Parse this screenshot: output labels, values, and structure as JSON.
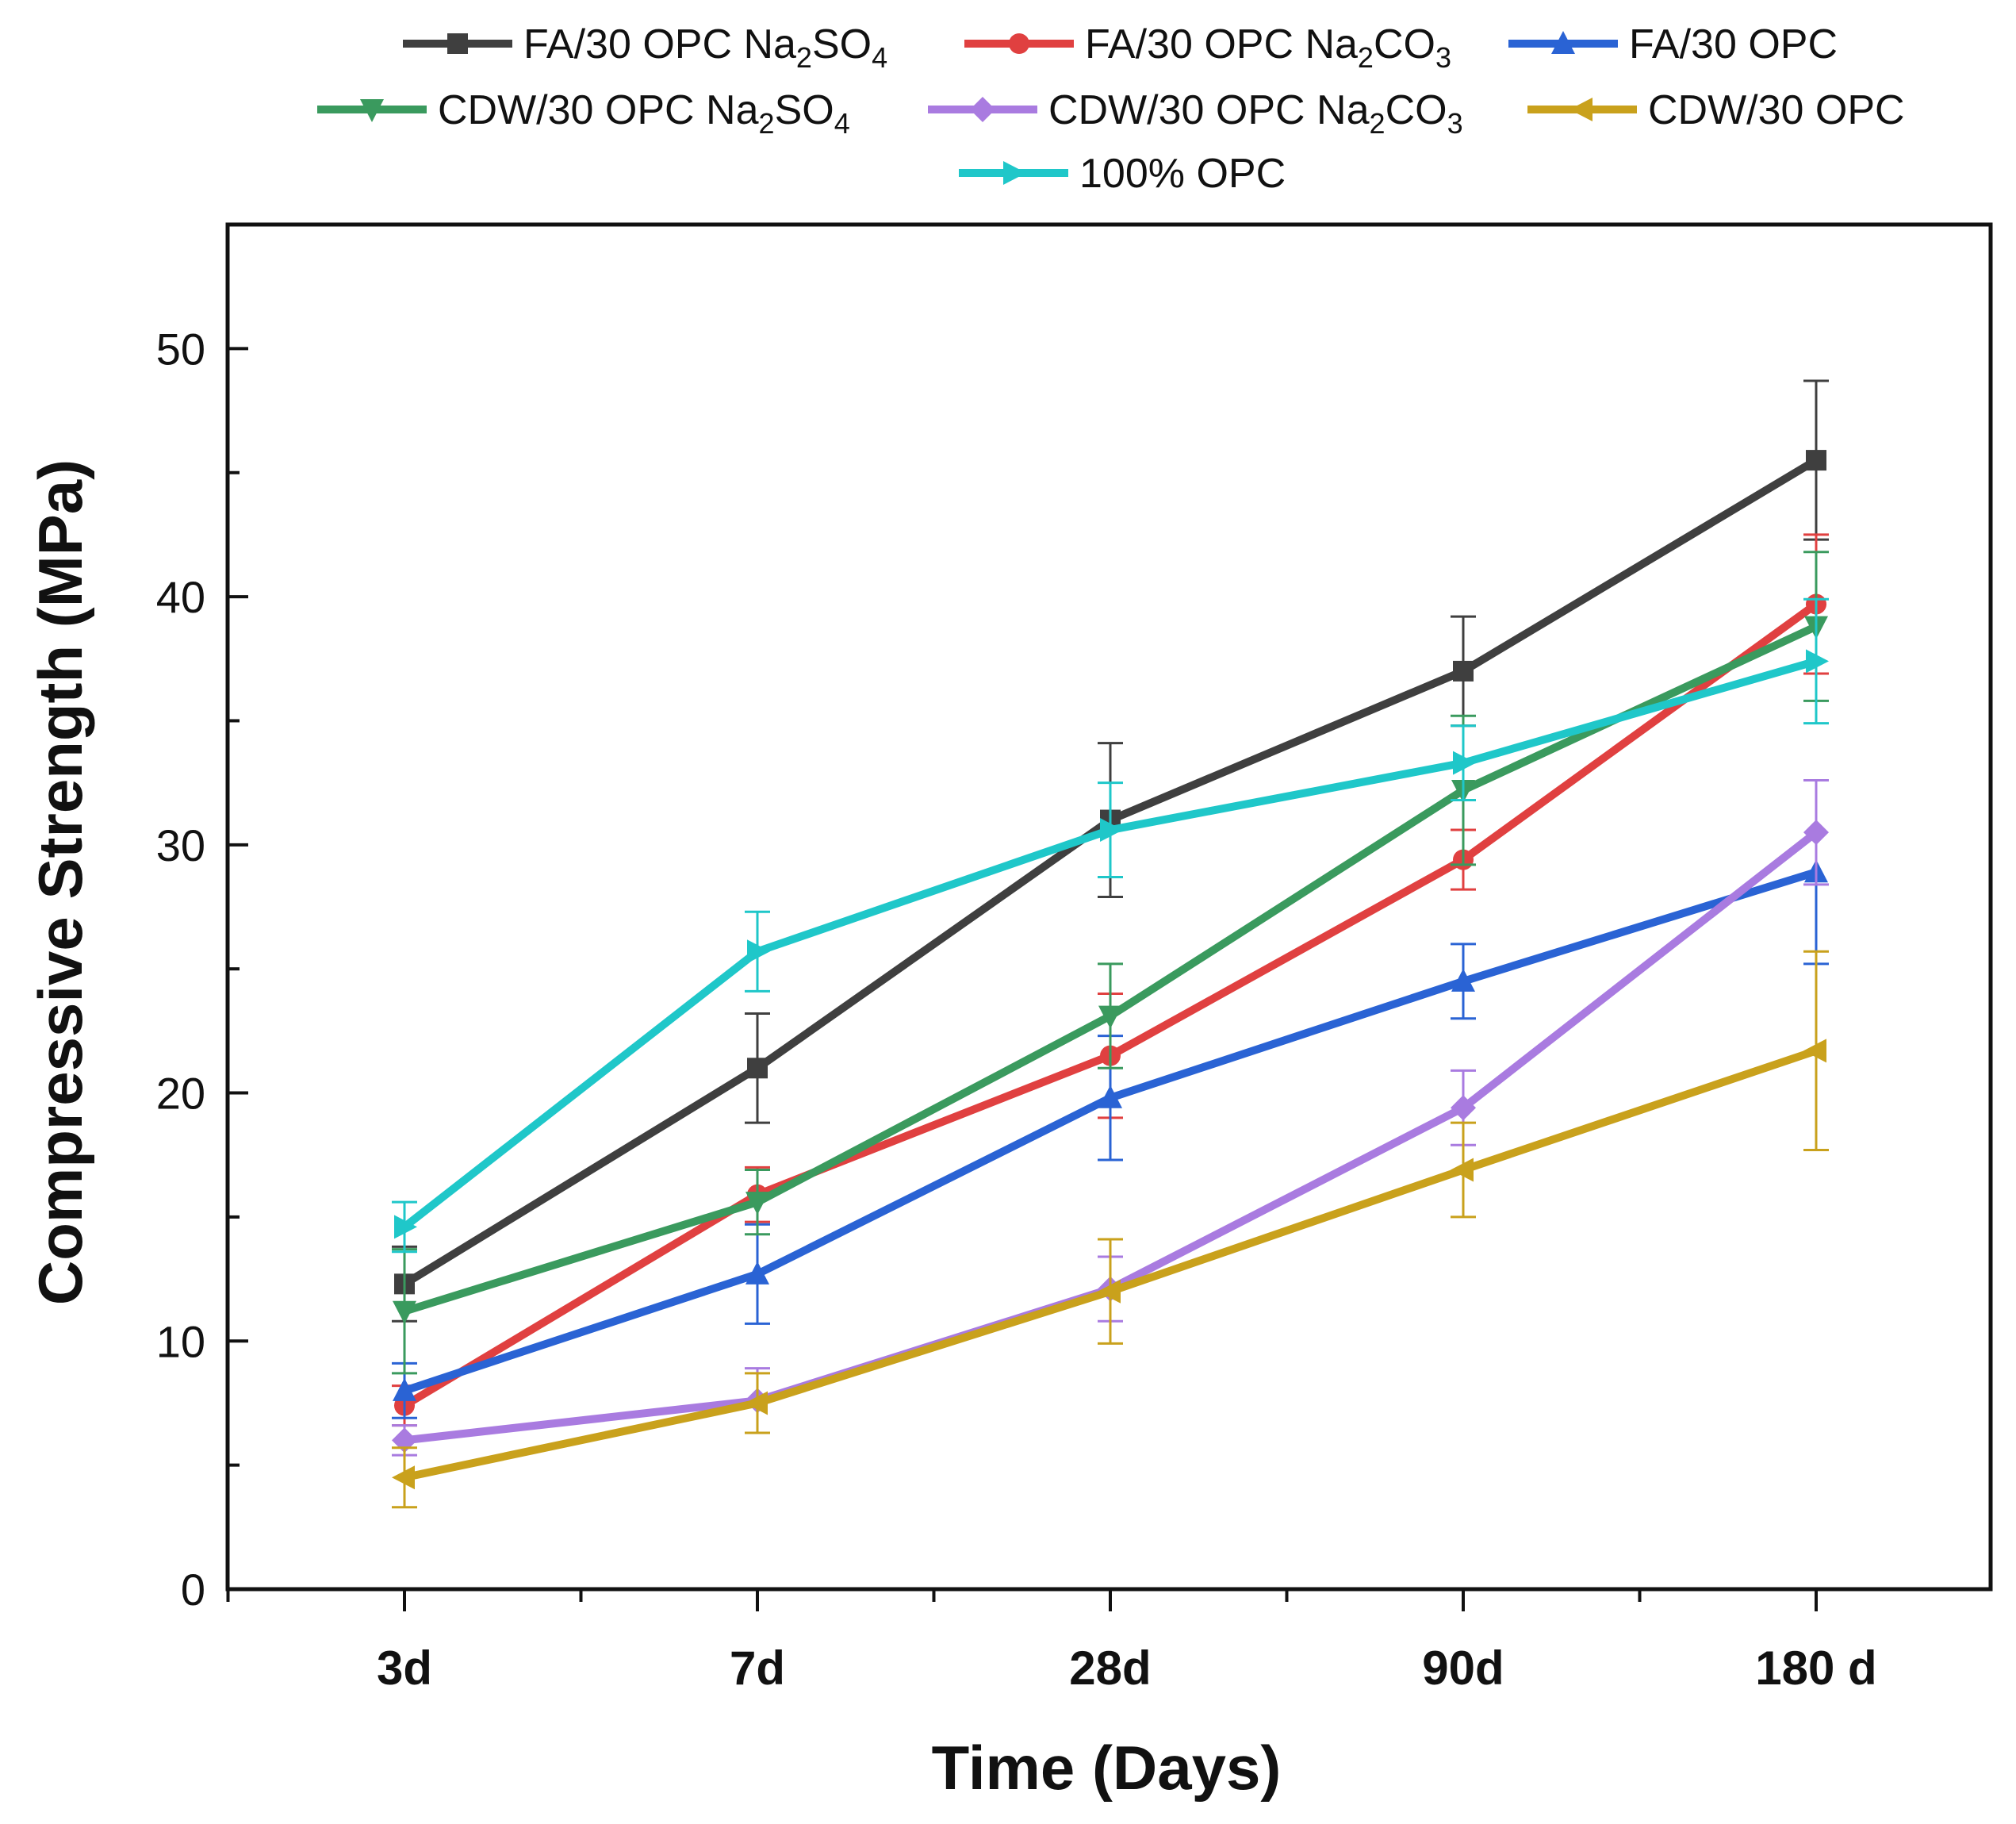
{
  "chart_data": {
    "type": "line",
    "title": "",
    "xlabel": "Time (Days)",
    "ylabel": "Compressive Strength (MPa)",
    "categories": [
      "3d",
      "7d",
      "28d",
      "90d",
      "180 d"
    ],
    "ylim": [
      0,
      55
    ],
    "yticks": [
      0,
      10,
      20,
      30,
      40,
      50
    ],
    "y_minor_step": 5,
    "grid": false,
    "error_bars": true,
    "legend_position": "top",
    "series": [
      {
        "name": "FA/30 OPC Na2SO4",
        "label_main": "FA/30 OPC Na",
        "label_parts": [
          [
            "FA/30 OPC Na",
            "n"
          ],
          [
            "2",
            "sub"
          ],
          [
            "SO",
            "n"
          ],
          [
            "4",
            "sub"
          ]
        ],
        "color": "#3f3f3f",
        "marker": "square",
        "values": [
          12.3,
          21.0,
          31.0,
          37.0,
          45.5
        ],
        "errors": [
          1.5,
          2.2,
          3.1,
          2.2,
          3.2
        ]
      },
      {
        "name": "FA/30 OPC Na2CO3",
        "label_parts": [
          [
            "FA/30 OPC Na",
            "n"
          ],
          [
            "2",
            "sub"
          ],
          [
            "CO",
            "n"
          ],
          [
            "3",
            "sub"
          ]
        ],
        "color": "#e04040",
        "marker": "circle",
        "values": [
          7.4,
          15.9,
          21.5,
          29.4,
          39.7
        ],
        "errors": [
          0.8,
          1.1,
          2.5,
          1.2,
          2.8
        ]
      },
      {
        "name": "FA/30 OPC",
        "label_parts": [
          [
            "FA/30 OPC",
            "n"
          ]
        ],
        "color": "#2a63d4",
        "marker": "triangle-up",
        "values": [
          8.0,
          12.7,
          19.8,
          24.5,
          28.9
        ],
        "errors": [
          1.1,
          2.0,
          2.5,
          1.5,
          3.7
        ]
      },
      {
        "name": "CDW/30 OPC Na2SO4",
        "label_parts": [
          [
            "CDW/30 OPC Na",
            "n"
          ],
          [
            "2",
            "sub"
          ],
          [
            "SO",
            "n"
          ],
          [
            "4",
            "sub"
          ]
        ],
        "color": "#3a9a5e",
        "marker": "triangle-down",
        "values": [
          11.2,
          15.6,
          23.1,
          32.2,
          38.8
        ],
        "errors": [
          2.5,
          1.3,
          2.1,
          3.0,
          3.0
        ]
      },
      {
        "name": "CDW/30 OPC Na2CO3",
        "label_parts": [
          [
            "CDW/30 OPC Na",
            "n"
          ],
          [
            "2",
            "sub"
          ],
          [
            "CO",
            "n"
          ],
          [
            "3",
            "sub"
          ]
        ],
        "color": "#a97be0",
        "marker": "diamond",
        "values": [
          6.0,
          7.6,
          12.1,
          19.4,
          30.5
        ],
        "errors": [
          0.6,
          1.3,
          1.3,
          1.5,
          2.1
        ]
      },
      {
        "name": "CDW/30 OPC",
        "label_parts": [
          [
            "CDW/30 OPC",
            "n"
          ]
        ],
        "color": "#c9a11c",
        "marker": "triangle-left",
        "values": [
          4.5,
          7.5,
          12.0,
          16.9,
          21.7
        ],
        "errors": [
          1.2,
          1.2,
          2.1,
          1.9,
          4.0
        ]
      },
      {
        "name": "100% OPC",
        "label_parts": [
          [
            "100% OPC",
            "n"
          ]
        ],
        "color": "#1fc7c9",
        "marker": "triangle-right",
        "values": [
          14.6,
          25.7,
          30.6,
          33.3,
          37.4
        ],
        "errors": [
          1.0,
          1.6,
          1.9,
          1.5,
          2.5
        ]
      }
    ]
  }
}
